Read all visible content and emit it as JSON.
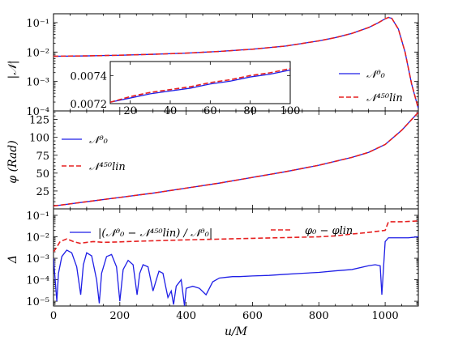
{
  "colors": {
    "blue": "#1f1fe6",
    "red": "#e62020"
  },
  "legend_text": {
    "n0": "𝒩⁰₀",
    "nlin": "𝒩⁴⁵⁰lin",
    "diff": "|(𝒩⁰₀ − 𝒩⁴⁵⁰lin) / 𝒩⁰₀|",
    "phase": "φ₀ − φlin"
  },
  "chart_data": [
    {
      "type": "line",
      "panel": "top",
      "ylabel": "|𝒩|",
      "yscale": "log",
      "ylim": [
        0.0001,
        0.2
      ],
      "xlim": [
        0,
        1100
      ],
      "yticks": [
        "10⁻¹",
        "10⁻²",
        "10⁻³",
        "10⁻⁴"
      ],
      "grid": false,
      "legend": "right",
      "series": [
        {
          "name": "𝒩⁰₀",
          "style": "solid",
          "color": "blue",
          "x": [
            0,
            100,
            200,
            300,
            400,
            500,
            600,
            700,
            800,
            850,
            900,
            950,
            980,
            1000,
            1010,
            1020,
            1040,
            1060,
            1080,
            1100
          ],
          "y": [
            0.0072,
            0.0074,
            0.0078,
            0.0084,
            0.0092,
            0.0105,
            0.0125,
            0.016,
            0.024,
            0.031,
            0.043,
            0.068,
            0.1,
            0.135,
            0.15,
            0.14,
            0.06,
            0.01,
            0.0008,
            0.00012
          ]
        },
        {
          "name": "𝒩⁴⁵⁰lin",
          "style": "dashed",
          "color": "red",
          "x": [
            0,
            100,
            200,
            300,
            400,
            500,
            600,
            700,
            800,
            850,
            900,
            950,
            980,
            1000,
            1010,
            1020,
            1040,
            1060,
            1080,
            1100
          ],
          "y": [
            0.0072,
            0.0074,
            0.0078,
            0.0084,
            0.0092,
            0.0105,
            0.0125,
            0.016,
            0.024,
            0.031,
            0.043,
            0.068,
            0.1,
            0.135,
            0.15,
            0.14,
            0.06,
            0.01,
            0.0008,
            0.00012
          ]
        }
      ],
      "inset": {
        "xlim": [
          10,
          100
        ],
        "ylim": [
          0.0072,
          0.0075
        ],
        "xticks": [
          "20",
          "40",
          "60",
          "80",
          "100"
        ],
        "yticks": [
          "0.0074",
          "0.0072"
        ],
        "series": [
          {
            "color": "blue",
            "style": "solid",
            "x": [
              10,
              20,
              30,
              40,
              50,
              60,
              70,
              80,
              90,
              100
            ],
            "y": [
              0.00721,
              0.00724,
              0.00727,
              0.00729,
              0.00731,
              0.00734,
              0.00736,
              0.00739,
              0.00741,
              0.00744
            ]
          },
          {
            "color": "red",
            "style": "dashed",
            "x": [
              10,
              20,
              30,
              40,
              50,
              60,
              70,
              80,
              90,
              100
            ],
            "y": [
              0.00721,
              0.00725,
              0.00728,
              0.0073,
              0.00732,
              0.00735,
              0.00737,
              0.0074,
              0.00742,
              0.00745
            ]
          }
        ]
      }
    },
    {
      "type": "line",
      "panel": "middle",
      "ylabel": "φ (Rad)",
      "ylim": [
        0,
        137
      ],
      "xlim": [
        0,
        1100
      ],
      "yticks": [
        25,
        50,
        75,
        100,
        125
      ],
      "grid": false,
      "legend": "top-left",
      "series": [
        {
          "name": "𝒩⁰₀",
          "style": "solid",
          "color": "blue",
          "x": [
            0,
            100,
            200,
            300,
            400,
            500,
            600,
            700,
            800,
            900,
            950,
            1000,
            1050,
            1100
          ],
          "y": [
            4,
            10,
            16,
            22,
            29,
            36,
            44,
            52,
            61,
            72,
            79,
            90,
            110,
            135
          ]
        },
        {
          "name": "𝒩⁴⁵⁰lin",
          "style": "dashed",
          "color": "red",
          "x": [
            0,
            100,
            200,
            300,
            400,
            500,
            600,
            700,
            800,
            900,
            950,
            1000,
            1050,
            1100
          ],
          "y": [
            4,
            10,
            16,
            22,
            29,
            36,
            44,
            52,
            61,
            72,
            79,
            90,
            110,
            135
          ]
        }
      ]
    },
    {
      "type": "line",
      "panel": "bottom",
      "ylabel": "Δ",
      "xlabel": "u/M",
      "yscale": "log",
      "ylim": [
        6e-06,
        0.2
      ],
      "xlim": [
        0,
        1100
      ],
      "yticks": [
        "10⁻¹",
        "10⁻²",
        "10⁻³",
        "10⁻⁴",
        "10⁻⁵"
      ],
      "xticks": [
        0,
        200,
        400,
        600,
        800,
        1000
      ],
      "grid": false,
      "legend": "top",
      "series": [
        {
          "name": "|(𝒩⁰₀ − 𝒩⁴⁵⁰lin) / 𝒩⁰₀|",
          "style": "solid",
          "color": "blue",
          "x": [
            0,
            5,
            10,
            15,
            25,
            40,
            55,
            70,
            82,
            90,
            100,
            115,
            130,
            138,
            145,
            160,
            175,
            190,
            200,
            210,
            225,
            240,
            252,
            260,
            270,
            285,
            300,
            310,
            318,
            330,
            345,
            355,
            362,
            370,
            385,
            395,
            400,
            420,
            440,
            460,
            480,
            500,
            520,
            540,
            560,
            600,
            650,
            700,
            750,
            800,
            850,
            900,
            950,
            970,
            985,
            990,
            1000,
            1010,
            1040,
            1070,
            1100
          ],
          "y": [
            0.001,
            0.0001,
            1e-05,
            0.0002,
            0.0012,
            0.0024,
            0.0018,
            0.0004,
            2e-05,
            0.0005,
            0.0018,
            0.0013,
            0.0001,
            8e-06,
            0.0002,
            0.0012,
            0.0015,
            0.0004,
            1e-05,
            0.0003,
            0.0008,
            0.0005,
            2e-05,
            0.0002,
            0.0005,
            0.0004,
            3e-05,
            0.0001,
            0.00025,
            0.0002,
            1.5e-05,
            3e-05,
            7e-06,
            5e-05,
            0.0001,
            6e-06,
            4e-05,
            5e-05,
            4e-05,
            2e-05,
            8e-05,
            0.00012,
            0.00013,
            0.00014,
            0.00014,
            0.00015,
            0.00016,
            0.00018,
            0.0002,
            0.00022,
            0.00026,
            0.0003,
            0.00045,
            0.0005,
            0.00045,
            2e-05,
            0.006,
            0.009,
            0.009,
            0.009,
            0.01
          ]
        },
        {
          "name": "φ₀ − φlin",
          "style": "dashed",
          "color": "red",
          "x": [
            0,
            8,
            20,
            40,
            60,
            80,
            100,
            120,
            150,
            200,
            250,
            300,
            400,
            500,
            600,
            700,
            800,
            850,
            900,
            950,
            1000,
            1010,
            1050,
            1100
          ],
          "y": [
            0.002,
            0.003,
            0.006,
            0.008,
            0.006,
            0.005,
            0.0055,
            0.006,
            0.0055,
            0.0058,
            0.0062,
            0.0065,
            0.0072,
            0.0078,
            0.0085,
            0.0092,
            0.01,
            0.011,
            0.0135,
            0.016,
            0.02,
            0.05,
            0.05,
            0.055
          ]
        }
      ]
    }
  ]
}
